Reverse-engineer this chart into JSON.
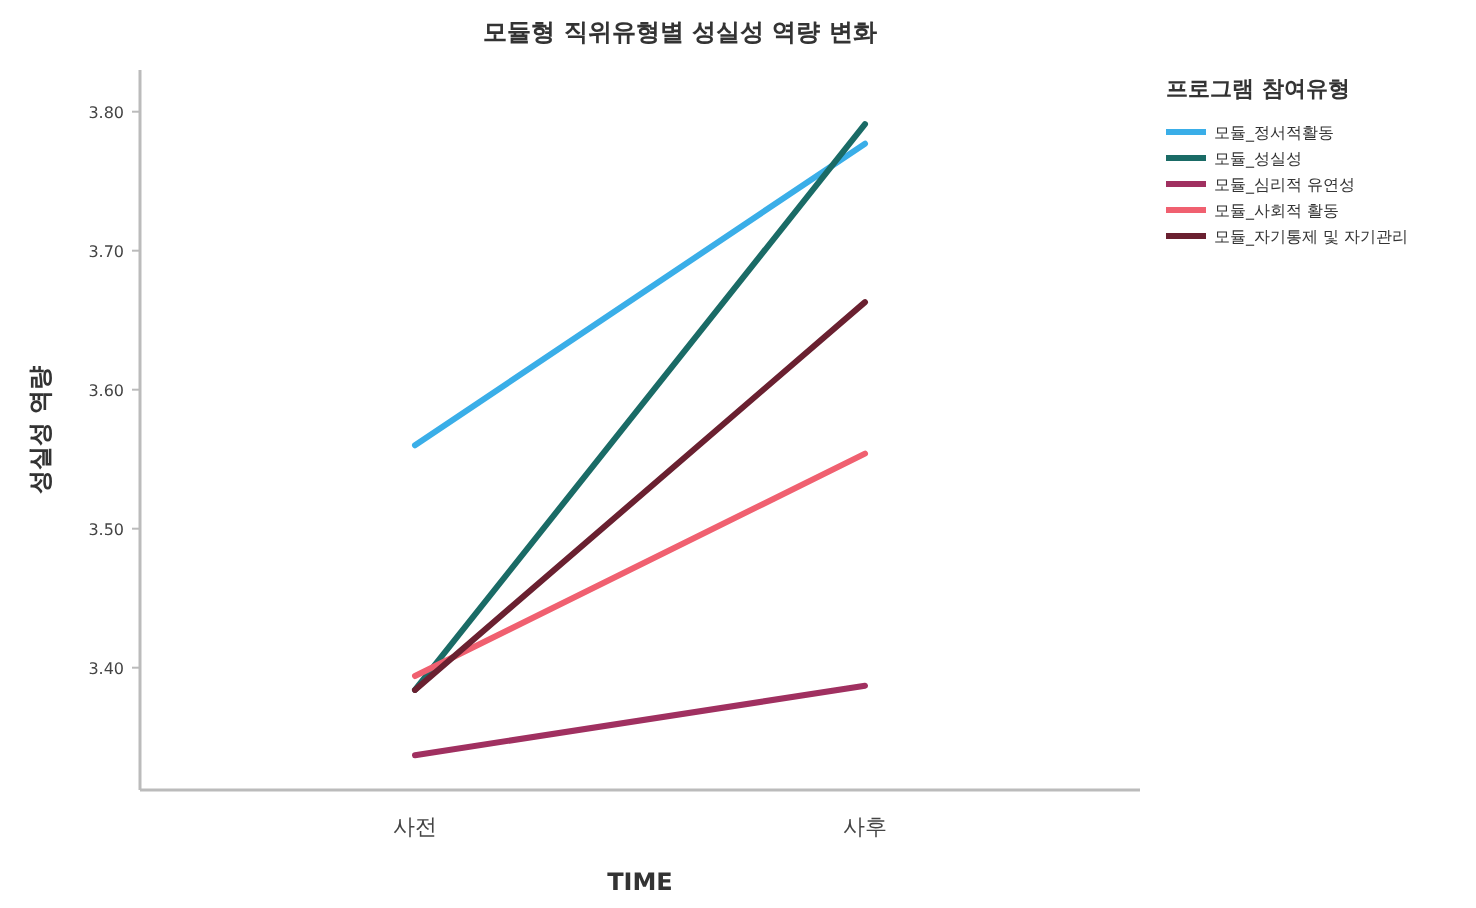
{
  "chart_data": {
    "type": "line",
    "title": "모듈형 직위유형별 성실성 역량 변화",
    "xlabel": "TIME",
    "ylabel": "성실성 역량",
    "legend_title": "프로그램 참여유형",
    "categories": [
      "사전",
      "사후"
    ],
    "series": [
      {
        "name": "모듈_정서적활동",
        "color": "#3aaee8",
        "values": [
          3.56,
          3.777
        ]
      },
      {
        "name": "모듈_성실성",
        "color": "#1a6b66",
        "values": [
          3.384,
          3.791
        ]
      },
      {
        "name": "모듈_심리적 유연성",
        "color": "#a03060",
        "values": [
          3.337,
          3.387
        ]
      },
      {
        "name": "모듈_사회적 활동",
        "color": "#f06070",
        "values": [
          3.394,
          3.554
        ]
      },
      {
        "name": "모듈_자기통제 및 자기관리",
        "color": "#6a2030",
        "values": [
          3.384,
          3.663
        ]
      }
    ],
    "ylim": [
      3.312,
      3.83
    ],
    "yticks": [
      {
        "value": 3.4,
        "label": "3.40"
      },
      {
        "value": 3.5,
        "label": "3.50"
      },
      {
        "value": 3.6,
        "label": "3.60"
      },
      {
        "value": 3.7,
        "label": "3.70"
      },
      {
        "value": 3.8,
        "label": "3.80"
      }
    ],
    "grid": false,
    "legend": "right",
    "marker": "none",
    "line_style": "solid"
  }
}
